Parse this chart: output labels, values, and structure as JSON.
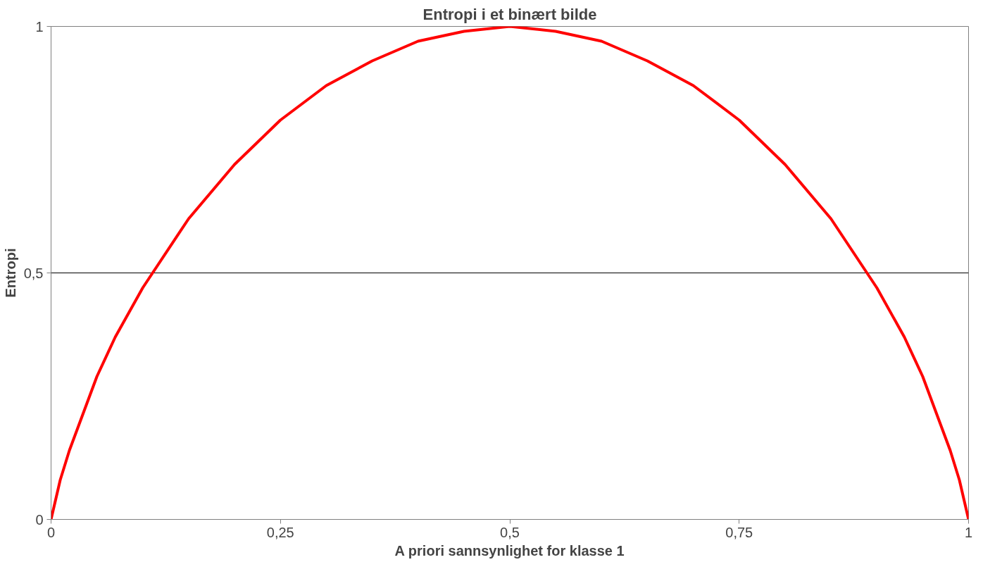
{
  "chart_data": {
    "type": "line",
    "title": "Entropi i et binært bilde",
    "xlabel": "A priori sannsynlighet for klasse 1",
    "ylabel": "Entropi",
    "x": [
      0,
      0.01,
      0.02,
      0.03,
      0.05,
      0.07,
      0.1,
      0.15,
      0.2,
      0.25,
      0.3,
      0.35,
      0.4,
      0.45,
      0.5,
      0.55,
      0.6,
      0.65,
      0.7,
      0.75,
      0.8,
      0.85,
      0.9,
      0.93,
      0.95,
      0.97,
      0.98,
      0.99,
      1
    ],
    "series": [
      {
        "color": "#ff0000",
        "values": [
          0,
          0.08,
          0.14,
          0.19,
          0.29,
          0.37,
          0.47,
          0.61,
          0.72,
          0.81,
          0.88,
          0.93,
          0.97,
          0.99,
          1,
          0.99,
          0.97,
          0.93,
          0.88,
          0.81,
          0.72,
          0.61,
          0.47,
          0.37,
          0.29,
          0.19,
          0.14,
          0.08,
          0
        ]
      }
    ],
    "xlim": [
      0,
      1
    ],
    "ylim": [
      0,
      1
    ],
    "xticks": [
      0,
      {
        "value": 0.25,
        "label": "0,25"
      },
      {
        "value": 0.5,
        "label": "0,5"
      },
      {
        "value": 0.75,
        "label": "0,75"
      },
      1
    ],
    "yticks": [
      0,
      {
        "value": 0.5,
        "label": "0,5"
      },
      1
    ],
    "grid": "y"
  }
}
